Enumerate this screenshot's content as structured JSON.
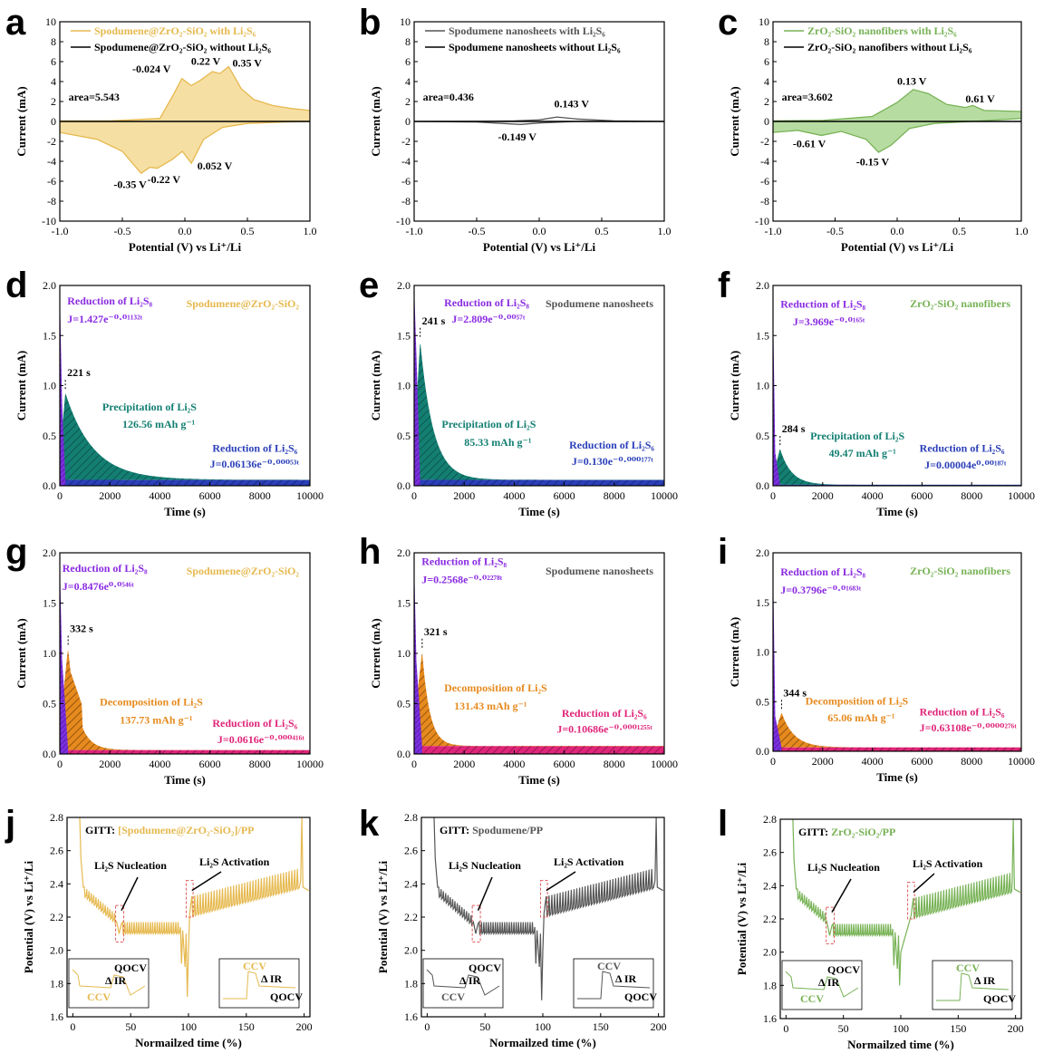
{
  "colors": {
    "spod_zro": "#e6b94f",
    "spod_zro_fill": "#f6dfa3",
    "spod": "#555555",
    "zro": "#77b255",
    "zro_fill": "#b7dca2",
    "teal": "#137f72",
    "blue": "#2b3fb9",
    "purple": "#8a2be2",
    "orange": "#e68a1e",
    "magenta": "#e0267a",
    "red_box": "#e05c5c"
  },
  "chart_data": [
    {
      "id": "a",
      "type": "line",
      "subtype": "cv",
      "color": "spod_zro",
      "fill": "spod_zro_fill",
      "xlim": [
        -1.0,
        1.0
      ],
      "ylim": [
        -10,
        10
      ],
      "xticks": [
        "-1.0",
        "-0.5",
        "0.0",
        "0.5",
        "1.0"
      ],
      "yticks": [
        "-10",
        "-8",
        "-6",
        "-4",
        "-2",
        "0",
        "2",
        "4",
        "6",
        "8",
        "10"
      ],
      "xlabel": "Potential (V) vs Li⁺/Li",
      "ylabel": "Current (mA)",
      "legend": [
        "Spodumene@ZrO₂-SiO₂ with Li₂S₆",
        "Spodumene@ZrO₂-SiO₂ without Li₂S₆"
      ],
      "area_label": "area=5.543",
      "upper": [
        [
          -1,
          0.05
        ],
        [
          -0.6,
          0.05
        ],
        [
          -0.2,
          0.3
        ],
        [
          -0.1,
          2.5
        ],
        [
          -0.024,
          4.3
        ],
        [
          0.05,
          3.6
        ],
        [
          0.12,
          4.1
        ],
        [
          0.22,
          5.0
        ],
        [
          0.28,
          4.8
        ],
        [
          0.35,
          5.5
        ],
        [
          0.45,
          3.3
        ],
        [
          0.55,
          2.2
        ],
        [
          0.7,
          1.6
        ],
        [
          0.85,
          1.3
        ],
        [
          1.0,
          1.1
        ]
      ],
      "lower": [
        [
          -1,
          -1.1
        ],
        [
          -0.7,
          -1.8
        ],
        [
          -0.5,
          -3.0
        ],
        [
          -0.35,
          -5.2
        ],
        [
          -0.28,
          -4.6
        ],
        [
          -0.22,
          -4.7
        ],
        [
          -0.1,
          -3.8
        ],
        [
          -0.02,
          -3.0
        ],
        [
          0.052,
          -4.2
        ],
        [
          0.15,
          -1.8
        ],
        [
          0.3,
          -0.6
        ],
        [
          0.5,
          -0.2
        ],
        [
          0.8,
          -0.05
        ],
        [
          1.0,
          0
        ]
      ],
      "annotations": [
        {
          "text": "-0.024 V",
          "x": -0.42,
          "y": 4.9
        },
        {
          "text": "0.22 V",
          "x": 0.05,
          "y": 5.7
        },
        {
          "text": "0.35 V",
          "x": 0.38,
          "y": 5.5
        },
        {
          "text": "0.052 V",
          "x": 0.1,
          "y": -4.8
        },
        {
          "text": "-0.22 V",
          "x": -0.3,
          "y": -6.2
        },
        {
          "text": "-0.35 V",
          "x": -0.57,
          "y": -6.7
        }
      ]
    },
    {
      "id": "b",
      "type": "line",
      "subtype": "cv",
      "color": "spod",
      "fill": "none",
      "xlim": [
        -1.0,
        1.0
      ],
      "ylim": [
        -10,
        10
      ],
      "xticks": [
        "-1.0",
        "-0.5",
        "0.0",
        "0.5",
        "1.0"
      ],
      "yticks": [
        "-10",
        "-8",
        "-6",
        "-4",
        "-2",
        "0",
        "2",
        "4",
        "6",
        "8",
        "10"
      ],
      "xlabel": "Potential (V) vs Li⁺/Li",
      "ylabel": "Current (mA)",
      "legend": [
        "Spodumene nanosheets with Li₂S₆",
        "Spodumene nanosheets without Li₂S₆"
      ],
      "area_label": "area=0.436",
      "upper": [
        [
          -1,
          0
        ],
        [
          -0.5,
          0
        ],
        [
          -0.2,
          0.05
        ],
        [
          0,
          0.15
        ],
        [
          0.143,
          0.45
        ],
        [
          0.3,
          0.25
        ],
        [
          0.6,
          0.05
        ],
        [
          1,
          0
        ]
      ],
      "lower": [
        [
          -1,
          0
        ],
        [
          -0.5,
          -0.05
        ],
        [
          -0.3,
          -0.2
        ],
        [
          -0.149,
          -0.3
        ],
        [
          0,
          -0.15
        ],
        [
          0.3,
          0
        ],
        [
          1,
          0
        ]
      ],
      "annotations": [
        {
          "text": "0.143 V",
          "x": 0.12,
          "y": 1.4
        },
        {
          "text": "-0.149 V",
          "x": -0.33,
          "y": -1.9
        }
      ]
    },
    {
      "id": "c",
      "type": "line",
      "subtype": "cv",
      "color": "zro",
      "fill": "zro_fill",
      "xlim": [
        -1.0,
        1.0
      ],
      "ylim": [
        -10,
        10
      ],
      "xticks": [
        "-1.0",
        "-0.5",
        "0.0",
        "0.5",
        "1.0"
      ],
      "yticks": [
        "-10",
        "-8",
        "-6",
        "-4",
        "-2",
        "0",
        "2",
        "4",
        "6",
        "8",
        "10"
      ],
      "xlabel": "Potential (V) vs Li⁺/Li",
      "ylabel": "Current (mA)",
      "legend": [
        "ZrO₂-SiO₂ nanofibers with Li₂S₆",
        "ZrO₂-SiO₂ nanofibers without Li₂S₆"
      ],
      "area_label": "area=3.602",
      "upper": [
        [
          -1,
          0.05
        ],
        [
          -0.6,
          0.1
        ],
        [
          -0.2,
          0.5
        ],
        [
          0,
          1.9
        ],
        [
          0.13,
          3.2
        ],
        [
          0.25,
          2.8
        ],
        [
          0.4,
          1.7
        ],
        [
          0.55,
          1.4
        ],
        [
          0.61,
          1.6
        ],
        [
          0.7,
          1.1
        ],
        [
          1.0,
          1.0
        ]
      ],
      "lower": [
        [
          -1,
          -1.1
        ],
        [
          -0.8,
          -0.9
        ],
        [
          -0.61,
          -1.4
        ],
        [
          -0.45,
          -1.0
        ],
        [
          -0.25,
          -1.8
        ],
        [
          -0.15,
          -3.1
        ],
        [
          -0.05,
          -2.4
        ],
        [
          0.1,
          -0.7
        ],
        [
          0.3,
          -0.2
        ],
        [
          0.6,
          0
        ],
        [
          1.0,
          0.3
        ]
      ],
      "annotations": [
        {
          "text": "0.13 V",
          "x": 0.0,
          "y": 3.7
        },
        {
          "text": "0.61 V",
          "x": 0.55,
          "y": 1.9
        },
        {
          "text": "-0.61 V",
          "x": -0.84,
          "y": -2.6
        },
        {
          "text": "-0.15 V",
          "x": -0.33,
          "y": -4.4
        }
      ]
    },
    {
      "id": "d",
      "type": "area",
      "subtype": "potentiostatic",
      "xlim": [
        0,
        10000
      ],
      "ylim": [
        0,
        2.0
      ],
      "xticks": [
        "0",
        "2000",
        "4000",
        "6000",
        "8000",
        "10000"
      ],
      "yticks": [
        "0.0",
        "0.5",
        "1.0",
        "1.5",
        "2.0"
      ],
      "xlabel": "Time (s)",
      "ylabel": "Current (mA)",
      "peak_time": 221,
      "peak_current": 0.93,
      "decay": 1100,
      "tail": 0.06,
      "peak_label": "221 s",
      "regions": [
        "purple",
        "teal",
        "blue"
      ],
      "title": "Spodumene@ZrO₂-SiO₂",
      "title_color": "spod_zro",
      "texts": [
        {
          "text": "Reduction of Li₂S₈",
          "x": 300,
          "y": 1.81,
          "color": "purple"
        },
        {
          "text": "J=1.427e⁻⁰·⁰¹¹³²ᵗ",
          "x": 300,
          "y": 1.63,
          "color": "purple"
        },
        {
          "text": "Precipitation of Li₂S",
          "x": 1700,
          "y": 0.75,
          "color": "teal"
        },
        {
          "text": "126.56 mAh g⁻¹",
          "x": 2500,
          "y": 0.58,
          "color": "teal"
        },
        {
          "text": "Reduction of Li₂S₆",
          "x": 6100,
          "y": 0.34,
          "color": "blue"
        },
        {
          "text": "J=0.06136e⁻⁰·⁰⁰⁰⁵³ᵗ",
          "x": 6000,
          "y": 0.18,
          "color": "blue"
        }
      ]
    },
    {
      "id": "e",
      "type": "area",
      "subtype": "potentiostatic",
      "xlim": [
        0,
        10000
      ],
      "ylim": [
        0,
        2.0
      ],
      "xticks": [
        "0",
        "2000",
        "4000",
        "6000",
        "8000",
        "10000"
      ],
      "yticks": [
        "0.0",
        "0.5",
        "1.0",
        "1.5",
        "2.0"
      ],
      "xlabel": "Time (s)",
      "ylabel": "Current (mA)",
      "peak_time": 241,
      "peak_current": 1.45,
      "decay": 520,
      "tail": 0.06,
      "peak_label": "241 s",
      "regions": [
        "purple",
        "teal",
        "blue"
      ],
      "title": "Spodumene nanosheets",
      "title_color": "spod",
      "texts": [
        {
          "text": "Reduction of Li₂S₈",
          "x": 1200,
          "y": 1.79,
          "color": "purple"
        },
        {
          "text": "J=2.809e⁻⁰·⁰⁰⁵⁷ᵗ",
          "x": 1500,
          "y": 1.63,
          "color": "purple"
        },
        {
          "text": "Precipitation of Li₂S",
          "x": 1100,
          "y": 0.58,
          "color": "teal"
        },
        {
          "text": "85.33 mAh g⁻¹",
          "x": 2000,
          "y": 0.4,
          "color": "teal"
        },
        {
          "text": "Reduction of Li₂S₆",
          "x": 6200,
          "y": 0.37,
          "color": "blue"
        },
        {
          "text": "J=0.130e⁻⁰·⁰⁰⁰¹⁷⁷ᵗ",
          "x": 6300,
          "y": 0.21,
          "color": "blue"
        }
      ]
    },
    {
      "id": "f",
      "type": "area",
      "subtype": "potentiostatic",
      "xlim": [
        0,
        10000
      ],
      "ylim": [
        0,
        2.0
      ],
      "xticks": [
        "0",
        "2000",
        "4000",
        "6000",
        "8000",
        "10000"
      ],
      "yticks": [
        "0.0",
        "0.5",
        "1.0",
        "1.5",
        "2.0"
      ],
      "xlabel": "Time (s)",
      "ylabel": "Current (mA)",
      "peak_time": 284,
      "peak_current": 0.37,
      "decay": 450,
      "tail": 0.01,
      "peak_label": "284 s",
      "regions": [
        "purple",
        "teal",
        "blue"
      ],
      "title": "ZrO₂-SiO₂ nanofibers",
      "title_color": "zro",
      "texts": [
        {
          "text": "Reduction of Li₂S₈",
          "x": 300,
          "y": 1.78,
          "color": "purple"
        },
        {
          "text": "J=3.969e⁻⁰·⁰¹⁶⁵ᵗ",
          "x": 800,
          "y": 1.6,
          "color": "purple"
        },
        {
          "text": "Precipitation of Li₂S",
          "x": 1500,
          "y": 0.46,
          "color": "teal"
        },
        {
          "text": "49.47 mAh g⁻¹",
          "x": 2250,
          "y": 0.29,
          "color": "teal"
        },
        {
          "text": "Reduction of Li₂S₆",
          "x": 5900,
          "y": 0.34,
          "color": "blue"
        },
        {
          "text": "J=0.00004e⁰·⁰⁰¹⁸⁷ᵗ",
          "x": 6100,
          "y": 0.17,
          "color": "blue"
        }
      ]
    },
    {
      "id": "g",
      "type": "area",
      "subtype": "potentiostatic",
      "xlim": [
        0,
        10000
      ],
      "ylim": [
        0,
        2.0
      ],
      "xticks": [
        "0",
        "2000",
        "4000",
        "6000",
        "8000",
        "10000"
      ],
      "yticks": [
        "0.0",
        "0.5",
        "1.0",
        "1.5",
        "2.0"
      ],
      "xlabel": "Time (s)",
      "ylabel": "Current (mA)",
      "peak_time": 332,
      "peak_current": 1.05,
      "decay": 380,
      "tail": 0.04,
      "shoulder": true,
      "peak_label": "332 s",
      "regions": [
        "purple",
        "orange",
        "magenta"
      ],
      "title": "Spodumene@ZrO₂-SiO₂",
      "title_color": "spod_zro",
      "texts": [
        {
          "text": "Reduction of Li₂S₈",
          "x": 100,
          "y": 1.81,
          "color": "purple"
        },
        {
          "text": "J=0.8476e⁰·⁰⁵⁴⁶ᵗ",
          "x": 100,
          "y": 1.63,
          "color": "purple"
        },
        {
          "text": "Decomposition of Li₂S",
          "x": 1600,
          "y": 0.48,
          "color": "orange"
        },
        {
          "text": "137.73 mAh g⁻¹",
          "x": 2400,
          "y": 0.3,
          "color": "orange"
        },
        {
          "text": "Reduction of Li₂S₆",
          "x": 6100,
          "y": 0.27,
          "color": "magenta"
        },
        {
          "text": "J=0.0616e⁻⁰·⁰⁰⁰⁴¹⁶ᵗ",
          "x": 6300,
          "y": 0.11,
          "color": "magenta"
        }
      ]
    },
    {
      "id": "h",
      "type": "area",
      "subtype": "potentiostatic",
      "xlim": [
        0,
        10000
      ],
      "ylim": [
        0,
        2.0
      ],
      "xticks": [
        "0",
        "2000",
        "4000",
        "6000",
        "8000",
        "10000"
      ],
      "yticks": [
        "0.0",
        "0.5",
        "1.0",
        "1.5",
        "2.0"
      ],
      "xlabel": "Time (s)",
      "ylabel": "Current (mA)",
      "peak_time": 321,
      "peak_current": 1.02,
      "decay": 300,
      "tail": 0.08,
      "peak_label": "321 s",
      "regions": [
        "purple",
        "orange",
        "magenta"
      ],
      "title": "Spodumene nanosheets",
      "title_color": "spod",
      "texts": [
        {
          "text": "Reduction of Li₂S₈",
          "x": 300,
          "y": 1.88,
          "color": "purple"
        },
        {
          "text": "J=0.2568e⁻⁰·⁰²²⁷⁸ᵗ",
          "x": 300,
          "y": 1.7,
          "color": "purple"
        },
        {
          "text": "Decomposition of Li₂S",
          "x": 1200,
          "y": 0.62,
          "color": "orange"
        },
        {
          "text": "131.43 mAh g⁻¹",
          "x": 1600,
          "y": 0.44,
          "color": "orange"
        },
        {
          "text": "Reduction of Li₂S₆",
          "x": 5900,
          "y": 0.37,
          "color": "magenta"
        },
        {
          "text": "J=0.10686e⁻⁰·⁰⁰⁰¹²⁵⁵ᵗ",
          "x": 5700,
          "y": 0.21,
          "color": "magenta"
        }
      ]
    },
    {
      "id": "i",
      "type": "area",
      "subtype": "potentiostatic",
      "xlim": [
        0,
        10000
      ],
      "ylim": [
        0,
        2.0
      ],
      "xticks": [
        "0",
        "2000",
        "4000",
        "6000",
        "8000",
        "10000"
      ],
      "yticks": [
        "0.0",
        "0.5",
        "1.0",
        "1.5",
        "2.0"
      ],
      "xlabel": "Time (s)",
      "ylabel": "Current (mA)",
      "peak_time": 344,
      "peak_current": 0.39,
      "decay": 500,
      "tail": 0.04,
      "peak_label": "344 s",
      "regions": [
        "purple",
        "orange",
        "magenta"
      ],
      "title": "ZrO₂-SiO₂  nanofibers",
      "title_color": "zro",
      "texts": [
        {
          "text": "Reduction of Li₂S₈",
          "x": 300,
          "y": 1.77,
          "color": "purple"
        },
        {
          "text": "J=0.3796e⁻⁰·⁰¹⁶⁸³ᵗ",
          "x": 300,
          "y": 1.59,
          "color": "purple"
        },
        {
          "text": "Decomposition of Li₂S",
          "x": 1300,
          "y": 0.47,
          "color": "orange"
        },
        {
          "text": "65.06 mAh g⁻¹",
          "x": 2200,
          "y": 0.3,
          "color": "orange"
        },
        {
          "text": "Reduction of Li₂S₆",
          "x": 5900,
          "y": 0.36,
          "color": "magenta"
        },
        {
          "text": "J=0.63108e⁻⁰·⁰⁰⁰⁰²⁷⁶ᵗ",
          "x": 5900,
          "y": 0.2,
          "color": "magenta"
        }
      ]
    },
    {
      "id": "j",
      "type": "line",
      "subtype": "gitt",
      "color": "spod_zro",
      "xlim": [
        -5,
        205
      ],
      "ylim": [
        1.6,
        2.8
      ],
      "xticks": [
        "0",
        "50",
        "100",
        "150",
        "200"
      ],
      "yticks": [
        "1.6",
        "1.8",
        "2.0",
        "2.2",
        "2.4",
        "2.6",
        "2.8"
      ],
      "xlabel": "Normailzed time (%)",
      "ylabel": "Potential (V) vs Li⁺/Li",
      "gitt_prefix": "GITT: ",
      "gitt_name": "[Spodumene@ZrO₂-SiO₂]/PP",
      "nucleation_label": "Li₂S Nucleation",
      "activation_label": "Li₂S Activation",
      "min_dip": 1.72,
      "nucleation_x": 38,
      "activation_x": 100,
      "inset_labels": {
        "left_top": "QOCV",
        "left_mid": "Δ IR",
        "left_bot": "CCV",
        "right_top": "CCV",
        "right_mid": "Δ IR",
        "right_bot": "QOCV"
      }
    },
    {
      "id": "k",
      "type": "line",
      "subtype": "gitt",
      "color": "spod",
      "xlim": [
        -5,
        205
      ],
      "ylim": [
        1.6,
        2.8
      ],
      "xticks": [
        "0",
        "50",
        "100",
        "150",
        "200"
      ],
      "yticks": [
        "1.6",
        "1.8",
        "2.0",
        "2.2",
        "2.4",
        "2.6",
        "2.8"
      ],
      "xlabel": "Normailzed time (%)",
      "ylabel": "Potential (V) vs Li⁺/Li",
      "gitt_prefix": "GITT: ",
      "gitt_name": "Spodumene/PP",
      "nucleation_label": "Li₂S Nucleation",
      "activation_label": "Li₂S Activation",
      "min_dip": 1.7,
      "nucleation_x": 40,
      "activation_x": 100,
      "inset_labels": {
        "left_top": "QOCV",
        "left_mid": "Δ IR",
        "left_bot": "CCV",
        "right_top": "CCV",
        "right_mid": "Δ IR",
        "right_bot": "QOCV"
      }
    },
    {
      "id": "l",
      "type": "line",
      "subtype": "gitt",
      "color": "zro",
      "xlim": [
        -5,
        205
      ],
      "ylim": [
        1.6,
        2.8
      ],
      "xticks": [
        "0",
        "50",
        "100",
        "150",
        "200"
      ],
      "yticks": [
        "1.6",
        "1.8",
        "2.0",
        "2.2",
        "2.4",
        "2.6",
        "2.8"
      ],
      "xlabel": "Normailzed time (%)",
      "ylabel": "Potential (V) vs Li⁺/Li",
      "gitt_prefix": "GITT: ",
      "gitt_name": "ZrO₂-SiO₂/PP",
      "nucleation_label": "Li₂S Nucleation",
      "activation_label": "Li₂S Activation",
      "min_dip": 1.8,
      "nucleation_x": 36,
      "activation_x": 108,
      "inset_labels": {
        "left_top": "QOCV",
        "left_mid": "Δ IR",
        "left_bot": "CCV",
        "right_top": "CCV",
        "right_mid": "Δ IR",
        "right_bot": "QOCV"
      }
    }
  ]
}
